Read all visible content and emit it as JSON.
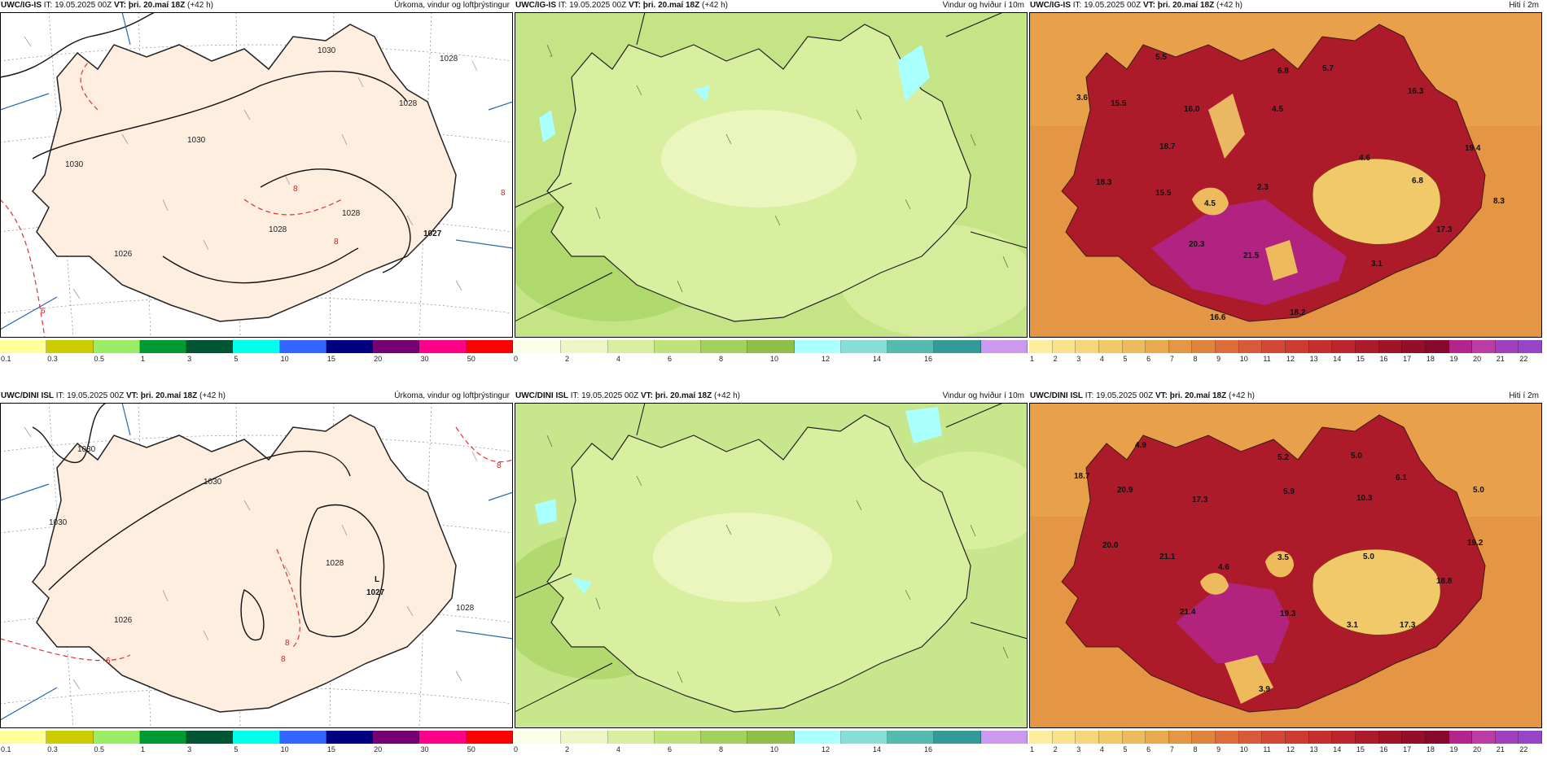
{
  "rows": [
    {
      "model": "UWC/IG-IS",
      "it": "IT: 19.05.2025 00Z",
      "vt": "VT: þri. 20.maí 18Z",
      "lead": "(+42 h)",
      "precip": {
        "title": "Úrkoma, vindur og loftþrýstingur",
        "isobars": [
          "1030",
          "1030",
          "1028",
          "1028",
          "1027",
          "1028",
          "1028",
          "1026",
          "1030"
        ],
        "pressure_center": {
          "symbol": "",
          "value": "1027"
        },
        "red_labels": [
          "8",
          "8",
          "6",
          "8"
        ]
      },
      "wind": {
        "title": "Vindur og hviður í 10m"
      },
      "temp": {
        "title": "Hiti í 2m",
        "labels": [
          "5.5",
          "6.8",
          "5.7",
          "3.6",
          "15.5",
          "16.0",
          "4.5",
          "16.3",
          "18.7",
          "4.6",
          "19.4",
          "18.3",
          "15.5",
          "4.5",
          "2.3",
          "6.8",
          "8.3",
          "20.3",
          "21.5",
          "3.1",
          "17.3",
          "16.6",
          "18.2"
        ]
      }
    },
    {
      "model": "UWC/DINI ISL",
      "it": "IT: 19.05.2025 00Z",
      "vt": "VT: þri. 20.maí 18Z",
      "lead": "(+42 h)",
      "precip": {
        "title": "Úrkoma, vindur og loftþrýstingur",
        "isobars": [
          "1030",
          "1030",
          "1030",
          "1028",
          "1028",
          "1026"
        ],
        "pressure_center": {
          "symbol": "L",
          "value": "1027"
        },
        "red_labels": [
          "8",
          "8",
          "6",
          "8"
        ]
      },
      "wind": {
        "title": "Vindur og hviður í 10m"
      },
      "temp": {
        "title": "Hiti í 2m",
        "labels": [
          "4.9",
          "5.2",
          "5.0",
          "18.7",
          "20.9",
          "5.9",
          "17.3",
          "6.1",
          "10.3",
          "5.0",
          "20.0",
          "3.5",
          "5.0",
          "19.2",
          "21.1",
          "4.6",
          "18.8",
          "21.4",
          "19.3",
          "3.1",
          "17.3",
          "3.9"
        ]
      }
    }
  ],
  "colorbars": {
    "precip": {
      "colors": [
        "#ffff99",
        "#cccc00",
        "#99ee66",
        "#009933",
        "#005533",
        "#00ffee",
        "#3366ff",
        "#000080",
        "#770077",
        "#ff0088",
        "#ff0000"
      ],
      "ticks": [
        "0.1",
        "0.3",
        "0.5",
        "1",
        "3",
        "5",
        "10",
        "15",
        "20",
        "30",
        "50"
      ]
    },
    "wind": {
      "colors": [
        "#fbfde8",
        "#eef7c4",
        "#d9efa0",
        "#bfe27a",
        "#a2d15e",
        "#8cc049",
        "#aaffff",
        "#88ddd5",
        "#55bbb0",
        "#339999",
        "#cc99ee"
      ],
      "ticks": [
        "0",
        "2",
        "4",
        "6",
        "8",
        "10",
        "12",
        "14",
        "16"
      ]
    },
    "temp": {
      "colors": [
        "#ffec9e",
        "#fae28a",
        "#f6d67a",
        "#f1c968",
        "#edbb5c",
        "#e9a94e",
        "#e59644",
        "#e0833d",
        "#dc6d3a",
        "#d85a38",
        "#d24834",
        "#cc3b31",
        "#c5302e",
        "#bb252b",
        "#ad1b2a",
        "#a01428",
        "#930e28",
        "#860a2b",
        "#b2258b",
        "#bb3ca3",
        "#a040c0",
        "#9844c8"
      ],
      "ticks": [
        "1",
        "2",
        "3",
        "4",
        "5",
        "6",
        "7",
        "8",
        "9",
        "10",
        "11",
        "12",
        "13",
        "14",
        "15",
        "16",
        "17",
        "18",
        "19",
        "20",
        "21",
        "22"
      ]
    }
  }
}
